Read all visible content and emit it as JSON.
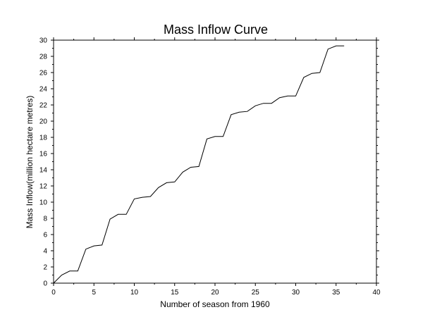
{
  "chart_data": {
    "type": "line",
    "title": "Mass Inflow Curve",
    "xlabel": "Number of season from 1960",
    "ylabel": "Mass Inflow(million hectare metres)",
    "xlim": [
      0,
      40
    ],
    "ylim": [
      0,
      30
    ],
    "xticks": [
      0,
      5,
      10,
      15,
      20,
      25,
      30,
      35,
      40
    ],
    "yticks": [
      0,
      2,
      4,
      6,
      8,
      10,
      12,
      14,
      16,
      18,
      20,
      22,
      24,
      26,
      28,
      30
    ],
    "grid": false,
    "legend": "none",
    "line_color": "#000000",
    "series": [
      {
        "x": [
          0,
          1,
          2,
          3,
          4,
          5,
          6,
          7,
          8,
          9,
          10,
          11,
          12,
          13,
          14,
          15,
          16,
          17,
          18,
          19,
          20,
          21,
          22,
          23,
          24,
          25,
          26,
          27,
          28,
          29,
          30,
          31,
          32,
          33,
          34,
          35,
          36
        ],
        "values": [
          0,
          1.0,
          1.5,
          1.5,
          4.2,
          4.6,
          4.7,
          7.9,
          8.5,
          8.5,
          10.4,
          10.6,
          10.7,
          11.8,
          12.4,
          12.5,
          13.7,
          14.3,
          14.4,
          17.8,
          18.1,
          18.1,
          20.8,
          21.1,
          21.2,
          21.9,
          22.2,
          22.2,
          22.9,
          23.1,
          23.1,
          25.4,
          25.9,
          26.0,
          28.9,
          29.3,
          29.3
        ]
      }
    ]
  }
}
